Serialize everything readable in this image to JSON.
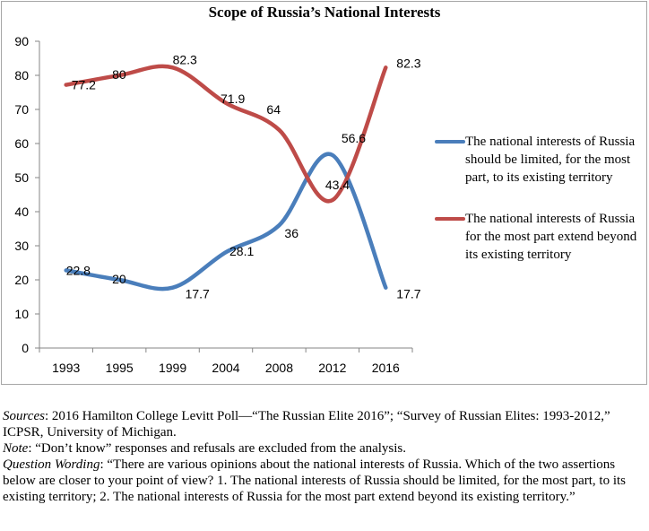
{
  "chart_data": {
    "type": "line",
    "title": "Scope of Russia’s National Interests",
    "categories": [
      "1993",
      "1995",
      "1999",
      "2004",
      "2008",
      "2012",
      "2016"
    ],
    "ylim": [
      0,
      90
    ],
    "yticks": [
      0,
      10,
      20,
      30,
      40,
      50,
      60,
      70,
      80,
      90
    ],
    "xlabel": "",
    "ylabel": "",
    "legend_position": "right",
    "series": [
      {
        "name": "The national interests of Russia should be limited, for the most part, to its existing territory",
        "color": "#4a7ebb",
        "values": [
          22.8,
          20,
          17.7,
          28.1,
          36,
          56.6,
          17.7
        ],
        "labels": [
          "22.8",
          "20",
          "17.7",
          "28.1",
          "36",
          "56.6",
          "17.7"
        ]
      },
      {
        "name": "The national interests of Russia for the most part extend beyond its existing territory",
        "color": "#be4b48",
        "values": [
          77.2,
          80,
          82.3,
          71.9,
          64,
          43.4,
          82.3
        ],
        "labels": [
          "77.2",
          "80",
          "82.3",
          "71.9",
          "64",
          "43.4",
          "82.3"
        ]
      }
    ]
  },
  "notes": {
    "sources_label": "Sources",
    "sources_text": ": 2016 Hamilton College Levitt Poll—“The Russian Elite 2016”; “Survey of Russian Elites: 1993-2012,” ICPSR, University of Michigan.",
    "note_label": "Note",
    "note_text": ": “Don’t know” responses and refusals are excluded from the analysis.",
    "question_label": "Question Wording",
    "question_text": ": “There are various opinions about the national interests of Russia. Which of the two assertions below are closer to your point of view? 1. The national interests of Russia should be limited, for the most part, to its existing territory; 2. The national interests of Russia for the most part extend beyond its existing territory.”"
  }
}
